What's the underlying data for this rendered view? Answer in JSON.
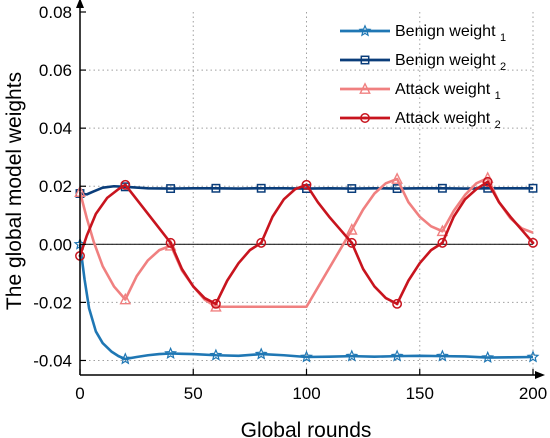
{
  "chart_data": {
    "type": "line",
    "xlabel": "Global rounds",
    "ylabel": "The global model weights",
    "xlim": [
      0,
      200
    ],
    "ylim": [
      -0.045,
      0.08
    ],
    "x_ticks": [
      "0",
      "50",
      "100",
      "150",
      "200"
    ],
    "y_ticks": [
      "-0.04",
      "-0.02",
      "0.00",
      "0.02",
      "0.04",
      "0.06",
      "0.08"
    ],
    "grid": "dotted",
    "legend_position": "top-right",
    "reference_line": 0.0,
    "series": [
      {
        "name": "Benign weight",
        "subscript": "1",
        "color": "#1f77b4",
        "marker": "star",
        "points": [
          [
            0,
            0.0
          ],
          [
            2,
            -0.012
          ],
          [
            4,
            -0.022
          ],
          [
            7,
            -0.03
          ],
          [
            10,
            -0.034
          ],
          [
            14,
            -0.037
          ],
          [
            17,
            -0.0385
          ],
          [
            20,
            -0.0395
          ],
          [
            25,
            -0.0388
          ],
          [
            30,
            -0.0382
          ],
          [
            35,
            -0.0378
          ],
          [
            40,
            -0.0376
          ],
          [
            45,
            -0.0377
          ],
          [
            50,
            -0.0378
          ],
          [
            60,
            -0.0382
          ],
          [
            70,
            -0.0384
          ],
          [
            80,
            -0.0378
          ],
          [
            90,
            -0.0382
          ],
          [
            100,
            -0.0388
          ],
          [
            110,
            -0.0387
          ],
          [
            120,
            -0.0385
          ],
          [
            130,
            -0.0387
          ],
          [
            140,
            -0.0385
          ],
          [
            150,
            -0.0384
          ],
          [
            160,
            -0.0385
          ],
          [
            170,
            -0.0386
          ],
          [
            180,
            -0.039
          ],
          [
            190,
            -0.0389
          ],
          [
            200,
            -0.0388
          ]
        ],
        "marker_x": [
          0,
          20,
          40,
          60,
          80,
          100,
          120,
          140,
          160,
          180,
          200
        ]
      },
      {
        "name": "Benign weight",
        "subscript": "2",
        "color": "#0a3d7a",
        "marker": "square",
        "points": [
          [
            0,
            0.0175
          ],
          [
            3,
            0.0172
          ],
          [
            6,
            0.0182
          ],
          [
            10,
            0.0195
          ],
          [
            15,
            0.02
          ],
          [
            20,
            0.0198
          ],
          [
            30,
            0.0193
          ],
          [
            40,
            0.0192
          ],
          [
            50,
            0.0193
          ],
          [
            60,
            0.0193
          ],
          [
            70,
            0.0192
          ],
          [
            80,
            0.0193
          ],
          [
            90,
            0.0193
          ],
          [
            100,
            0.0192
          ],
          [
            110,
            0.0193
          ],
          [
            120,
            0.0192
          ],
          [
            130,
            0.0193
          ],
          [
            140,
            0.0192
          ],
          [
            150,
            0.0193
          ],
          [
            160,
            0.0193
          ],
          [
            170,
            0.0192
          ],
          [
            180,
            0.0193
          ],
          [
            190,
            0.0193
          ],
          [
            200,
            0.0193
          ]
        ],
        "marker_x": [
          0,
          20,
          40,
          60,
          80,
          100,
          120,
          140,
          160,
          180,
          200
        ]
      },
      {
        "name": "Attack weight",
        "subscript": "1",
        "color": "#f08080",
        "marker": "triangle",
        "points": [
          [
            0,
            0.018
          ],
          [
            3,
            0.009
          ],
          [
            6,
            0.001
          ],
          [
            10,
            -0.0075
          ],
          [
            15,
            -0.0145
          ],
          [
            20,
            -0.019
          ],
          [
            25,
            -0.011
          ],
          [
            30,
            -0.0055
          ],
          [
            35,
            -0.002
          ],
          [
            40,
            -0.0005
          ],
          [
            41,
            -0.002
          ],
          [
            45,
            -0.009
          ],
          [
            50,
            -0.0145
          ],
          [
            55,
            -0.019
          ],
          [
            60,
            -0.0215
          ],
          [
            80,
            -0.0215
          ],
          [
            100,
            -0.0215
          ],
          [
            120,
            0.005
          ],
          [
            125,
            0.012
          ],
          [
            130,
            0.0175
          ],
          [
            135,
            0.021
          ],
          [
            140,
            0.0225
          ],
          [
            145,
            0.0145
          ],
          [
            150,
            0.0095
          ],
          [
            155,
            0.0062
          ],
          [
            160,
            0.0045
          ],
          [
            165,
            0.0115
          ],
          [
            170,
            0.017
          ],
          [
            175,
            0.021
          ],
          [
            180,
            0.0228
          ],
          [
            185,
            0.0145
          ],
          [
            190,
            0.009
          ],
          [
            195,
            0.0055
          ],
          [
            200,
            0.004
          ]
        ],
        "marker_x": [
          0,
          20,
          40,
          60,
          120,
          140,
          160,
          180
        ]
      },
      {
        "name": "Attack weight",
        "subscript": "2",
        "color": "#c8141e",
        "marker": "circle",
        "points": [
          [
            0,
            -0.004
          ],
          [
            3,
            0.003
          ],
          [
            7,
            0.0105
          ],
          [
            12,
            0.016
          ],
          [
            17,
            0.019
          ],
          [
            20,
            0.0205
          ],
          [
            25,
            0.0155
          ],
          [
            30,
            0.0105
          ],
          [
            35,
            0.0055
          ],
          [
            40,
            0.0005
          ],
          [
            45,
            -0.0085
          ],
          [
            50,
            -0.0145
          ],
          [
            55,
            -0.0185
          ],
          [
            60,
            -0.0205
          ],
          [
            65,
            -0.0125
          ],
          [
            70,
            -0.0065
          ],
          [
            75,
            -0.002
          ],
          [
            80,
            0.0005
          ],
          [
            85,
            0.0095
          ],
          [
            90,
            0.0155
          ],
          [
            95,
            0.019
          ],
          [
            100,
            0.0205
          ],
          [
            105,
            0.0145
          ],
          [
            110,
            0.0095
          ],
          [
            115,
            0.005
          ],
          [
            120,
            0.0005
          ],
          [
            125,
            -0.0085
          ],
          [
            130,
            -0.0145
          ],
          [
            135,
            -0.0185
          ],
          [
            140,
            -0.0205
          ],
          [
            145,
            -0.0125
          ],
          [
            150,
            -0.0065
          ],
          [
            155,
            -0.002
          ],
          [
            160,
            0.0005
          ],
          [
            165,
            0.0095
          ],
          [
            170,
            0.0155
          ],
          [
            175,
            0.019
          ],
          [
            180,
            0.0215
          ],
          [
            185,
            0.0145
          ],
          [
            190,
            0.0095
          ],
          [
            195,
            0.005
          ],
          [
            200,
            0.0005
          ]
        ],
        "marker_x": [
          0,
          20,
          40,
          60,
          80,
          100,
          120,
          140,
          160,
          180,
          200
        ]
      }
    ]
  }
}
